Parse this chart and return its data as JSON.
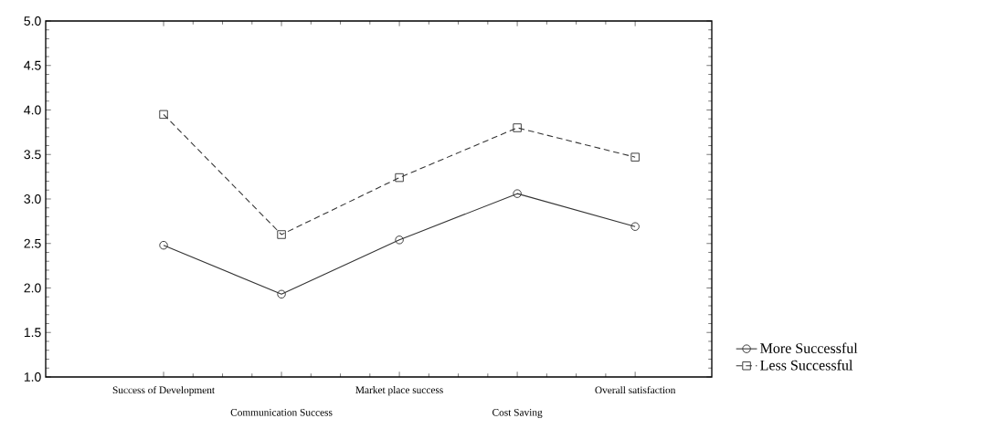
{
  "chart_data": {
    "type": "line",
    "categories": [
      "Success of Development",
      "Communication Success",
      "Market place success",
      "Cost Saving",
      "Overall satisfaction"
    ],
    "series": [
      {
        "name": "More Successful",
        "color": "#333333",
        "marker": "circle",
        "line_style": "solid",
        "values": [
          2.48,
          1.93,
          2.54,
          3.06,
          2.69
        ]
      },
      {
        "name": "Less Successful",
        "color": "#333333",
        "marker": "square",
        "line_style": "dashed",
        "values": [
          3.95,
          2.6,
          3.24,
          3.8,
          3.47
        ]
      }
    ],
    "ylim": [
      1.0,
      5.0
    ],
    "yticks": [
      {
        "value": 1,
        "label": "1.0"
      },
      1.5,
      {
        "value": 2,
        "label": "2.0"
      },
      2.5,
      {
        "value": 3,
        "label": "3.0"
      },
      3.5,
      {
        "value": 4,
        "label": "4.0"
      },
      4.5,
      {
        "value": 5,
        "label": "5.0"
      }
    ],
    "legend": "bottom right"
  }
}
